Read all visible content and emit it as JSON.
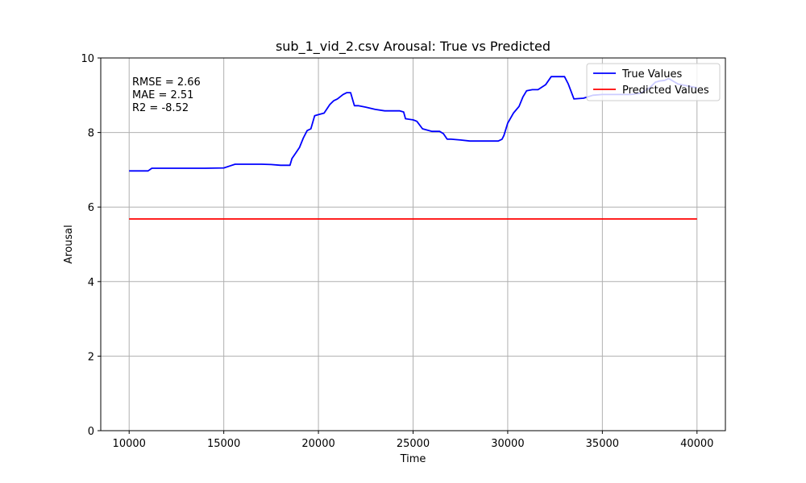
{
  "chart_data": {
    "type": "line",
    "title": "sub_1_vid_2.csv Arousal: True vs Predicted",
    "xlabel": "Time",
    "ylabel": "Arousal",
    "xlim": [
      8500,
      41500
    ],
    "ylim": [
      0,
      10
    ],
    "xticks": [
      10000,
      15000,
      20000,
      25000,
      30000,
      35000,
      40000
    ],
    "yticks": [
      0,
      2,
      4,
      6,
      8,
      10
    ],
    "grid": true,
    "legend_position": "top-right",
    "annotations": [
      "RMSE = 2.66",
      "MAE = 2.51",
      "R2 = -8.52"
    ],
    "series": [
      {
        "name": "True Values",
        "color": "#0000ff",
        "x": [
          10000,
          11000,
          11200,
          12000,
          13000,
          14000,
          15000,
          15300,
          15600,
          16000,
          17000,
          17500,
          18000,
          18500,
          18600,
          18800,
          19000,
          19200,
          19400,
          19600,
          19800,
          20000,
          20300,
          20600,
          20800,
          21000,
          21300,
          21500,
          21700,
          21900,
          22000,
          22100,
          22500,
          23000,
          23500,
          24000,
          24300,
          24500,
          24600,
          25000,
          25200,
          25500,
          26000,
          26400,
          26600,
          26800,
          27000,
          27500,
          28000,
          28200,
          29000,
          29500,
          29700,
          29800,
          30000,
          30300,
          30600,
          30800,
          31000,
          31300,
          31600,
          32000,
          32300,
          32600,
          33000,
          33200,
          33500,
          34000,
          34500,
          35000,
          35500,
          36000,
          36500,
          37000,
          37500,
          37800,
          38000,
          38300,
          38500,
          39000,
          39500,
          40000
        ],
        "y": [
          6.97,
          6.97,
          7.04,
          7.04,
          7.04,
          7.04,
          7.05,
          7.1,
          7.15,
          7.15,
          7.15,
          7.14,
          7.12,
          7.12,
          7.3,
          7.45,
          7.6,
          7.85,
          8.05,
          8.1,
          8.45,
          8.48,
          8.52,
          8.75,
          8.85,
          8.9,
          9.02,
          9.07,
          9.07,
          8.72,
          8.72,
          8.72,
          8.68,
          8.62,
          8.58,
          8.58,
          8.58,
          8.55,
          8.37,
          8.34,
          8.3,
          8.1,
          8.03,
          8.03,
          7.97,
          7.82,
          7.82,
          7.8,
          7.77,
          7.77,
          7.77,
          7.77,
          7.82,
          7.92,
          8.25,
          8.52,
          8.7,
          8.95,
          9.12,
          9.15,
          9.15,
          9.28,
          9.5,
          9.5,
          9.5,
          9.3,
          8.9,
          8.92,
          9.0,
          9.02,
          9.02,
          9.02,
          9.02,
          9.05,
          9.2,
          9.35,
          9.38,
          9.4,
          9.45,
          9.3,
          9.25,
          9.2
        ]
      },
      {
        "name": "Predicted Values",
        "color": "#ff0000",
        "x": [
          10000,
          40000
        ],
        "y": [
          5.68,
          5.68
        ]
      }
    ]
  }
}
